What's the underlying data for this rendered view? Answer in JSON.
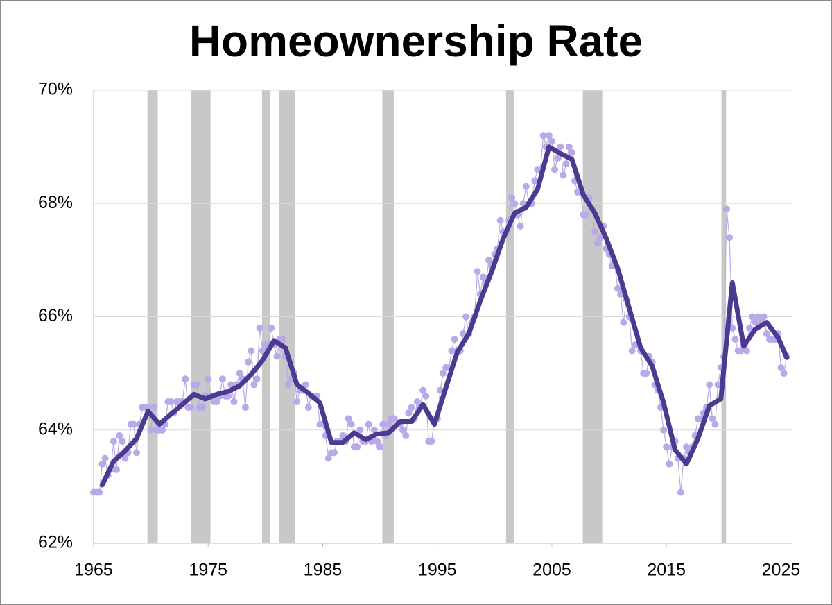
{
  "chart_data": {
    "type": "line",
    "title": "Homeownership Rate",
    "x": [
      1965,
      1965.25,
      1965.5,
      1965.75,
      1966,
      1966.25,
      1966.5,
      1966.75,
      1967,
      1967.25,
      1967.5,
      1967.75,
      1968,
      1968.25,
      1968.5,
      1968.75,
      1969,
      1969.25,
      1969.5,
      1969.75,
      1970,
      1970.25,
      1970.5,
      1970.75,
      1971,
      1971.25,
      1971.5,
      1971.75,
      1972,
      1972.25,
      1972.5,
      1972.75,
      1973,
      1973.25,
      1973.5,
      1973.75,
      1974,
      1974.25,
      1974.5,
      1974.75,
      1975,
      1975.25,
      1975.5,
      1975.75,
      1976,
      1976.25,
      1976.5,
      1976.75,
      1977,
      1977.25,
      1977.5,
      1977.75,
      1978,
      1978.25,
      1978.5,
      1978.75,
      1979,
      1979.25,
      1979.5,
      1979.75,
      1980,
      1980.25,
      1980.5,
      1980.75,
      1981,
      1981.25,
      1981.5,
      1981.75,
      1982,
      1982.25,
      1982.5,
      1982.75,
      1983,
      1983.25,
      1983.5,
      1983.75,
      1984,
      1984.25,
      1984.5,
      1984.75,
      1985,
      1985.25,
      1985.5,
      1985.75,
      1986,
      1986.25,
      1986.5,
      1986.75,
      1987,
      1987.25,
      1987.5,
      1987.75,
      1988,
      1988.25,
      1988.5,
      1988.75,
      1989,
      1989.25,
      1989.5,
      1989.75,
      1990,
      1990.25,
      1990.5,
      1990.75,
      1991,
      1991.25,
      1991.5,
      1991.75,
      1992,
      1992.25,
      1992.5,
      1992.75,
      1993,
      1993.25,
      1993.5,
      1993.75,
      1994,
      1994.25,
      1994.5,
      1994.75,
      1995,
      1995.25,
      1995.5,
      1995.75,
      1996,
      1996.25,
      1996.5,
      1996.75,
      1997,
      1997.25,
      1997.5,
      1997.75,
      1998,
      1998.25,
      1998.5,
      1998.75,
      1999,
      1999.25,
      1999.5,
      1999.75,
      2000,
      2000.25,
      2000.5,
      2000.75,
      2001,
      2001.25,
      2001.5,
      2001.75,
      2002,
      2002.25,
      2002.5,
      2002.75,
      2003,
      2003.25,
      2003.5,
      2003.75,
      2004,
      2004.25,
      2004.5,
      2004.75,
      2005,
      2005.25,
      2005.5,
      2005.75,
      2006,
      2006.25,
      2006.5,
      2006.75,
      2007,
      2007.25,
      2007.5,
      2007.75,
      2008,
      2008.25,
      2008.5,
      2008.75,
      2009,
      2009.25,
      2009.5,
      2009.75,
      2010,
      2010.25,
      2010.5,
      2010.75,
      2011,
      2011.25,
      2011.5,
      2011.75,
      2012,
      2012.25,
      2012.5,
      2012.75,
      2013,
      2013.25,
      2013.5,
      2013.75,
      2014,
      2014.25,
      2014.5,
      2014.75,
      2015,
      2015.25,
      2015.5,
      2015.75,
      2016,
      2016.25,
      2016.5,
      2016.75,
      2017,
      2017.25,
      2017.5,
      2017.75,
      2018,
      2018.25,
      2018.5,
      2018.75,
      2019,
      2019.25,
      2019.5,
      2019.75,
      2020,
      2020.25,
      2020.5,
      2020.75,
      2021,
      2021.25,
      2021.5,
      2021.75,
      2022,
      2022.25,
      2022.5,
      2022.75,
      2023,
      2023.25,
      2023.5,
      2023.75,
      2024,
      2024.25,
      2024.5,
      2024.75,
      2025,
      2025.25,
      2025.5
    ],
    "series": [
      {
        "color": "#b8aae8",
        "marker": true,
        "values": [
          62.9,
          62.9,
          62.9,
          63.4,
          63.5,
          63.2,
          63.3,
          63.8,
          63.3,
          63.9,
          63.8,
          63.5,
          63.6,
          64.1,
          64.1,
          63.6,
          64.1,
          64.4,
          64.4,
          64.4,
          64.0,
          64.4,
          64.0,
          64.0,
          64.0,
          64.1,
          64.5,
          64.5,
          64.3,
          64.5,
          64.5,
          64.5,
          64.9,
          64.4,
          64.4,
          64.8,
          64.8,
          64.4,
          64.4,
          64.6,
          64.9,
          64.6,
          64.5,
          64.5,
          64.6,
          64.9,
          64.6,
          64.6,
          64.8,
          64.5,
          64.8,
          65.0,
          64.9,
          64.4,
          65.2,
          65.4,
          64.8,
          64.9,
          65.8,
          65.4,
          65.5,
          65.5,
          65.8,
          65.5,
          65.3,
          65.6,
          65.6,
          65.3,
          64.8,
          64.9,
          65.0,
          64.5,
          64.7,
          64.7,
          64.8,
          64.4,
          64.6,
          64.6,
          64.6,
          64.1,
          64.1,
          63.9,
          63.5,
          63.6,
          63.6,
          63.8,
          63.8,
          63.9,
          63.8,
          64.2,
          64.1,
          63.7,
          63.7,
          64.0,
          63.8,
          63.8,
          64.1,
          63.8,
          64.0,
          63.8,
          63.7,
          64.1,
          63.9,
          64.1,
          64.2,
          64.2,
          64.1,
          64.1,
          64.0,
          63.9,
          64.3,
          64.4,
          64.2,
          64.5,
          64.4,
          64.7,
          64.6,
          63.8,
          63.8,
          64.2,
          64.2,
          64.7,
          65.0,
          65.1,
          65.1,
          65.4,
          65.6,
          65.4,
          65.4,
          65.7,
          66.0,
          65.7,
          65.9,
          66.0,
          66.8,
          66.4,
          66.7,
          66.6,
          67.0,
          66.9,
          67.1,
          67.2,
          67.7,
          67.5,
          67.5,
          67.7,
          68.1,
          68.0,
          67.8,
          67.6,
          68.0,
          68.3,
          68.0,
          68.0,
          68.4,
          68.6,
          68.6,
          69.2,
          69.0,
          69.2,
          69.1,
          68.6,
          68.8,
          69.0,
          68.5,
          68.7,
          69.0,
          68.9,
          68.4,
          68.2,
          68.2,
          67.8,
          67.8,
          68.1,
          67.9,
          67.5,
          67.3,
          67.4,
          67.6,
          67.2,
          67.1,
          66.9,
          66.9,
          66.5,
          66.4,
          65.9,
          66.3,
          66.0,
          65.4,
          65.5,
          65.5,
          65.4,
          65.0,
          65.0,
          65.3,
          65.2,
          64.8,
          64.7,
          64.4,
          64.0,
          63.7,
          63.4,
          63.7,
          63.8,
          63.5,
          62.9,
          63.5,
          63.7,
          63.6,
          63.7,
          63.9,
          64.2,
          64.2,
          64.3,
          64.4,
          64.8,
          64.2,
          64.1,
          64.8,
          65.1,
          65.3,
          67.9,
          67.4,
          65.8,
          65.6,
          65.4,
          65.4,
          65.5,
          65.4,
          65.8,
          66.0,
          65.9,
          66.0,
          65.9,
          66.0,
          65.7,
          65.6,
          65.6,
          65.6,
          65.7,
          65.1,
          65.0,
          65.3
        ]
      },
      {
        "color": "#4b3a8f",
        "marker": false,
        "x": [
          1965.75,
          1966.75,
          1967.75,
          1968.75,
          1969.75,
          1970.75,
          1971.75,
          1972.75,
          1973.75,
          1974.75,
          1975.75,
          1976.75,
          1977.75,
          1978.75,
          1979.75,
          1980.75,
          1981.75,
          1982.75,
          1983.75,
          1984.75,
          1985.75,
          1986.75,
          1987.75,
          1988.75,
          1989.75,
          1990.75,
          1991.75,
          1992.75,
          1993.75,
          1994.75,
          1995.75,
          1996.75,
          1997.75,
          1998.75,
          1999.75,
          2000.75,
          2001.75,
          2002.75,
          2003.75,
          2004.75,
          2005.75,
          2006.75,
          2007.75,
          2008.75,
          2009.75,
          2010.75,
          2011.75,
          2012.75,
          2013.75,
          2014.75,
          2015.75,
          2016.75,
          2017.75,
          2018.75,
          2019.75,
          2020.75,
          2021.75,
          2022.75,
          2023.75,
          2024.75,
          2025.5
        ],
        "values": [
          63.03,
          63.45,
          63.63,
          63.85,
          64.33,
          64.1,
          64.28,
          64.45,
          64.63,
          64.55,
          64.63,
          64.68,
          64.78,
          64.98,
          65.23,
          65.58,
          65.45,
          64.8,
          64.65,
          64.48,
          63.78,
          63.78,
          63.95,
          63.83,
          63.93,
          63.95,
          64.15,
          64.15,
          64.45,
          64.1,
          64.75,
          65.38,
          65.7,
          66.28,
          66.8,
          67.38,
          67.83,
          67.93,
          68.25,
          69.0,
          68.88,
          68.78,
          68.15,
          67.83,
          67.38,
          66.85,
          66.15,
          65.45,
          65.13,
          64.48,
          63.65,
          63.4,
          63.85,
          64.43,
          64.55,
          66.6,
          65.48,
          65.78,
          65.9,
          65.63,
          65.28
        ]
      }
    ],
    "recessions": [
      [
        1969.7,
        1970.6
      ],
      [
        1973.5,
        1975.2
      ],
      [
        1979.7,
        1980.4
      ],
      [
        1981.2,
        1982.6
      ],
      [
        1990.2,
        1991.2
      ],
      [
        2001.0,
        2001.7
      ],
      [
        2007.7,
        2009.4
      ],
      [
        2019.8,
        2020.2
      ]
    ],
    "recession_color": "#c8c8c8",
    "xlim": [
      1965,
      2026
    ],
    "xticks": [
      1965,
      1975,
      1985,
      1995,
      2005,
      2015,
      2025
    ],
    "ylim": [
      62,
      70
    ],
    "yticks": [
      {
        "value": 62,
        "label": "62%"
      },
      {
        "value": 64,
        "label": "64%"
      },
      {
        "value": 66,
        "label": "66%"
      },
      {
        "value": 68,
        "label": "68%"
      },
      {
        "value": 70,
        "label": "70%"
      }
    ],
    "grid": true
  }
}
